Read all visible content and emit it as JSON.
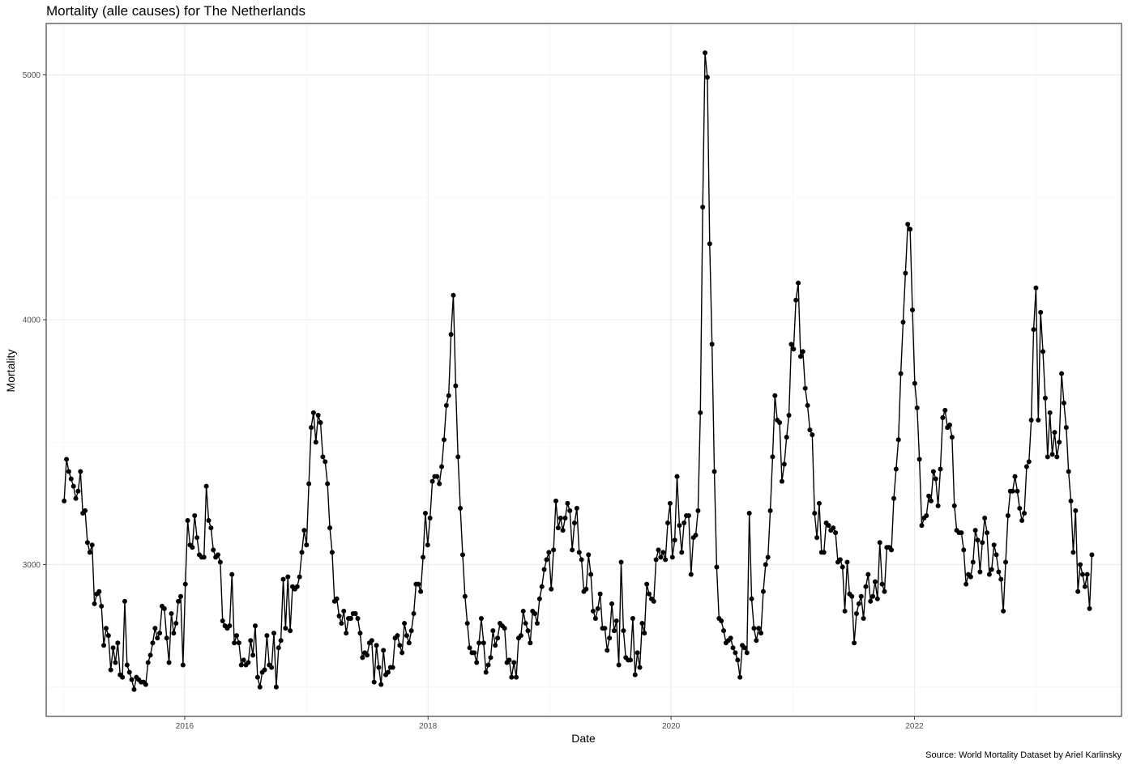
{
  "chart_data": {
    "type": "line",
    "title": "Mortality (alle causes) for The Netherlands",
    "xlabel": "Date",
    "ylabel": "Mortality",
    "caption": "Source: World Mortality Dataset by Ariel Karlinsky",
    "x_ticks": [
      "2016",
      "2018",
      "2020",
      "2022"
    ],
    "y_ticks": [
      3000,
      4000,
      5000
    ],
    "x_range": [
      "2014-11-11",
      "2023-09-15"
    ],
    "ylim": [
      2380,
      5210
    ],
    "grid": true,
    "legend": "none",
    "colors": {
      "line": "#000000",
      "points": "#000000",
      "grid": "#ebebeb",
      "panel_border": "#333333"
    },
    "series": [
      {
        "start_date": "2015-01-04",
        "interval_days": 7,
        "values": [
          3260,
          3430,
          3380,
          3350,
          3320,
          3270,
          3300,
          3380,
          3210,
          3220,
          3090,
          3050,
          3080,
          2840,
          2880,
          2890,
          2830,
          2670,
          2740,
          2710,
          2570,
          2660,
          2600,
          2680,
          2550,
          2540,
          2850,
          2590,
          2560,
          2530,
          2490,
          2540,
          2530,
          2520,
          2520,
          2510,
          2600,
          2630,
          2680,
          2740,
          2700,
          2720,
          2830,
          2820,
          2700,
          2600,
          2800,
          2720,
          2760,
          2850,
          2870,
          2590,
          2920,
          3180,
          3080,
          3070,
          3200,
          3110,
          3040,
          3030,
          3030,
          3320,
          3180,
          3150,
          3060,
          3030,
          3040,
          3010,
          2770,
          2750,
          2740,
          2750,
          2960,
          2680,
          2710,
          2680,
          2590,
          2610,
          2590,
          2600,
          2690,
          2630,
          2750,
          2540,
          2500,
          2560,
          2570,
          2710,
          2590,
          2580,
          2720,
          2500,
          2660,
          2690,
          2940,
          2740,
          2950,
          2730,
          2910,
          2900,
          2910,
          2950,
          3050,
          3140,
          3080,
          3330,
          3560,
          3620,
          3500,
          3610,
          3580,
          3440,
          3420,
          3330,
          3150,
          3050,
          2850,
          2860,
          2790,
          2760,
          2810,
          2720,
          2780,
          2780,
          2800,
          2800,
          2780,
          2720,
          2620,
          2640,
          2630,
          2680,
          2690,
          2520,
          2670,
          2580,
          2510,
          2650,
          2550,
          2560,
          2580,
          2580,
          2700,
          2710,
          2670,
          2640,
          2760,
          2710,
          2680,
          2730,
          2800,
          2920,
          2920,
          2890,
          3030,
          3210,
          3080,
          3190,
          3340,
          3360,
          3360,
          3330,
          3400,
          3510,
          3650,
          3690,
          3940,
          4100,
          3730,
          3440,
          3230,
          3040,
          2870,
          2760,
          2660,
          2640,
          2640,
          2600,
          2680,
          2780,
          2680,
          2560,
          2590,
          2620,
          2730,
          2670,
          2700,
          2760,
          2750,
          2740,
          2600,
          2610,
          2540,
          2600,
          2540,
          2700,
          2710,
          2810,
          2760,
          2730,
          2680,
          2810,
          2800,
          2760,
          2860,
          2910,
          2980,
          3020,
          3050,
          2900,
          3060,
          3260,
          3150,
          3190,
          3140,
          3190,
          3250,
          3220,
          3060,
          3170,
          3230,
          3050,
          3020,
          2890,
          2900,
          3040,
          2960,
          2810,
          2780,
          2820,
          2880,
          2740,
          2740,
          2650,
          2700,
          2840,
          2730,
          2770,
          2590,
          3010,
          2730,
          2620,
          2610,
          2610,
          2780,
          2550,
          2640,
          2580,
          2760,
          2720,
          2920,
          2880,
          2860,
          2850,
          3020,
          3060,
          3030,
          3050,
          3020,
          3170,
          3250,
          3030,
          3100,
          3360,
          3160,
          3050,
          3170,
          3200,
          3200,
          2960,
          3110,
          3120,
          3220,
          3620,
          4460,
          5090,
          4990,
          4310,
          3900,
          3380,
          2990,
          2780,
          2770,
          2730,
          2680,
          2690,
          2700,
          2660,
          2640,
          2610,
          2540,
          2670,
          2660,
          2640,
          3210,
          2860,
          2740,
          2690,
          2740,
          2720,
          2890,
          3000,
          3030,
          3220,
          3440,
          3690,
          3590,
          3580,
          3340,
          3410,
          3520,
          3610,
          3900,
          3880,
          4080,
          4150,
          3850,
          3870,
          3720,
          3650,
          3550,
          3530,
          3210,
          3110,
          3250,
          3050,
          3050,
          3170,
          3160,
          3140,
          3150,
          3130,
          3010,
          3020,
          2990,
          2810,
          3010,
          2880,
          2870,
          2680,
          2800,
          2840,
          2870,
          2780,
          2910,
          2960,
          2850,
          2870,
          2930,
          2860,
          3090,
          2920,
          2890,
          3070,
          3070,
          3060,
          3270,
          3390,
          3510,
          3780,
          3990,
          4190,
          4390,
          4370,
          4040,
          3740,
          3640,
          3430,
          3160,
          3190,
          3200,
          3280,
          3260,
          3380,
          3350,
          3240,
          3390,
          3600,
          3630,
          3560,
          3570,
          3520,
          3240,
          3140,
          3130,
          3130,
          3060,
          2920,
          2960,
          2950,
          3010,
          3140,
          3100,
          2970,
          3090,
          3190,
          3130,
          2960,
          2980,
          3080,
          3040,
          2970,
          2940,
          2810,
          3010,
          3200,
          3300,
          3300,
          3360,
          3300,
          3230,
          3180,
          3210,
          3400,
          3420,
          3590,
          3960,
          4130,
          3590,
          4030,
          3870,
          3680,
          3440,
          3620,
          3450,
          3540,
          3440,
          3500,
          3780,
          3660,
          3560,
          3380,
          3260,
          3050,
          3220,
          2890,
          3000,
          2960,
          2910,
          2960,
          2820,
          3040
        ]
      }
    ]
  }
}
